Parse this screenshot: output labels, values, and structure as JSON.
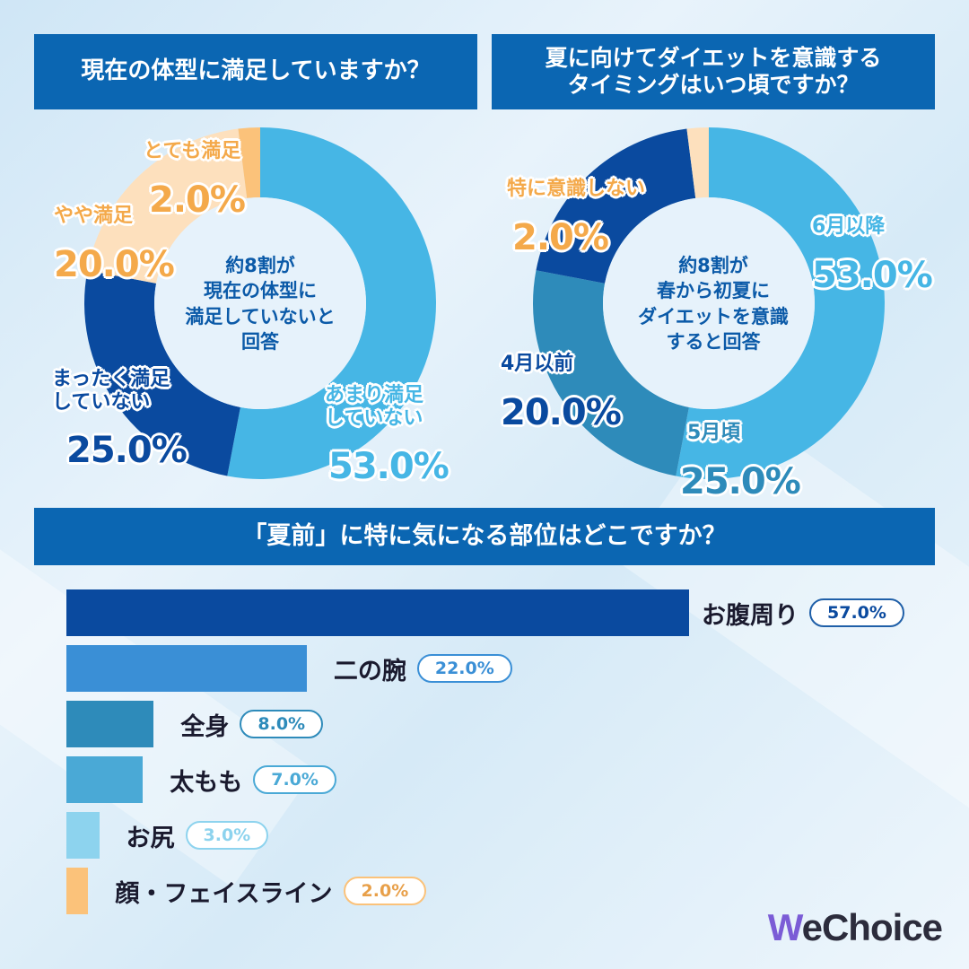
{
  "colors": {
    "header": "#0b66b2",
    "dark_blue": "#0a4a9f",
    "blue": "#3a8fd6",
    "teal": "#2e8bba",
    "light_blue": "#46b6e5",
    "pale_blue": "#8dd3ee",
    "peach": "#fde0bd",
    "orange": "#fbc27a"
  },
  "chart_data": [
    {
      "type": "pie",
      "title": "現在の体型に満足していますか？",
      "center_text": "約8割が\n現在の体型に\n満足していないと\n回答",
      "slices": [
        {
          "name": "あまり満足\nしていない",
          "value": 53.0,
          "display": "53.0%",
          "color": "#46b6e5"
        },
        {
          "name": "まったく満足\nしていない",
          "value": 25.0,
          "display": "25.0%",
          "color": "#0a4a9f"
        },
        {
          "name": "やや満足",
          "value": 20.0,
          "display": "20.0%",
          "color": "#fde0bd"
        },
        {
          "name": "とても満足",
          "value": 2.0,
          "display": "2.0%",
          "color": "#fbc27a"
        }
      ]
    },
    {
      "type": "pie",
      "title": "夏に向けてダイエットを意識する\nタイミングはいつ頃ですか？",
      "center_text": "約8割が\n春から初夏に\nダイエットを意識\nすると回答",
      "slices": [
        {
          "name": "6月以降",
          "value": 53.0,
          "display": "53.0%",
          "color": "#46b6e5"
        },
        {
          "name": "5月頃",
          "value": 25.0,
          "display": "25.0%",
          "color": "#2e8bba"
        },
        {
          "name": "4月以前",
          "value": 20.0,
          "display": "20.0%",
          "color": "#0a4a9f"
        },
        {
          "name": "特に意識しない",
          "value": 2.0,
          "display": "2.0%",
          "color": "#fde0bd"
        }
      ]
    },
    {
      "type": "bar",
      "title": "「夏前」に特に気になる部位はどこですか？",
      "categories": [
        "お腹周り",
        "二の腕",
        "全身",
        "太もも",
        "お尻",
        "顔・フェイスライン"
      ],
      "values": [
        57.0,
        22.0,
        8.0,
        7.0,
        3.0,
        2.0
      ],
      "display": [
        "57.0%",
        "22.0%",
        "8.0%",
        "7.0%",
        "3.0%",
        "2.0%"
      ],
      "colors": [
        "#0a4a9f",
        "#3a8fd6",
        "#2e8bba",
        "#4aa9d6",
        "#8dd3ee",
        "#fbc27a"
      ],
      "badge_text_colors": [
        "#0a4a9f",
        "#3a8fd6",
        "#2e8bba",
        "#4aa9d6",
        "#8dd3ee",
        "#e8a04a"
      ],
      "badge_border_colors": [
        "#1f5fa8",
        "#3a8fd6",
        "#2e8bba",
        "#4aa9d6",
        "#8dd3ee",
        "#fbc27a"
      ],
      "xlim": [
        0,
        57
      ]
    }
  ],
  "brand": {
    "logo_text": "WeChoice"
  }
}
